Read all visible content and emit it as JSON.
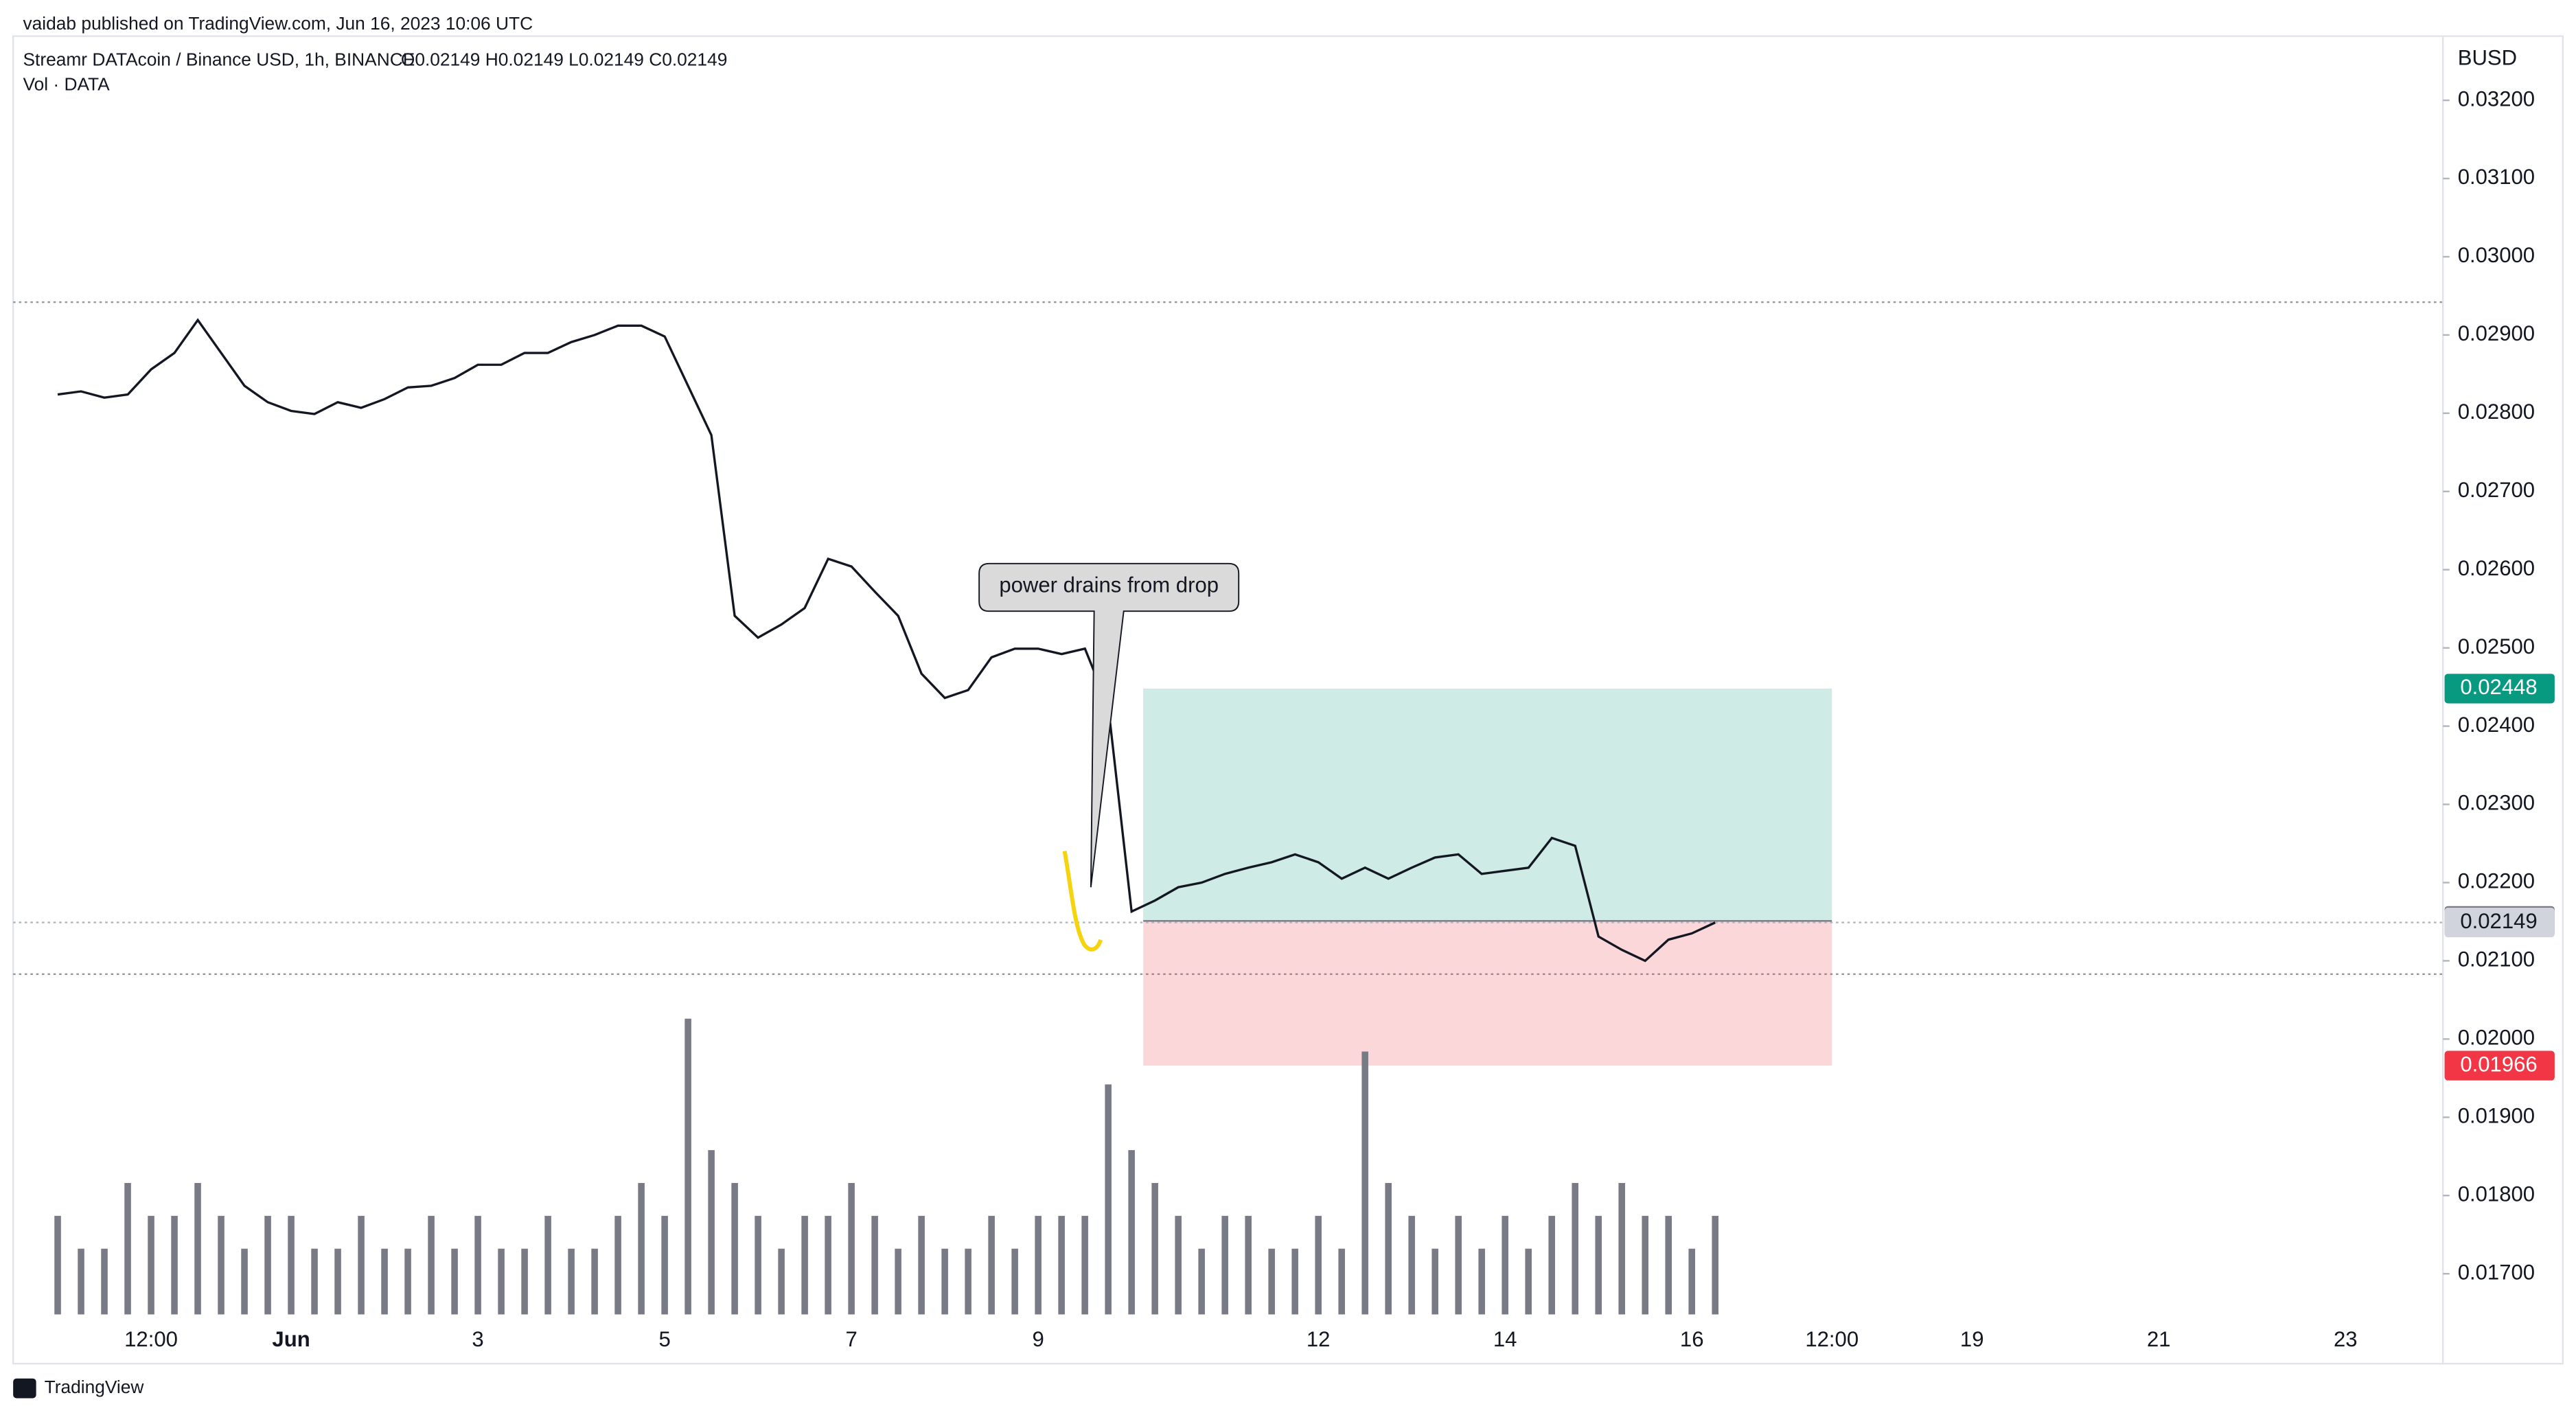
{
  "header": {
    "publisher": "vaidab published on TradingView.com, Jun 16, 2023 10:06 UTC",
    "footer": "TradingView"
  },
  "chart_data": {
    "type": "line",
    "legend_ohlc": "O0.02149  H0.02149  L0.02149  C0.02149",
    "y_unit": "BUSD",
    "annotation": "power drains from drop",
    "categories": [
      null,
      null,
      null,
      null,
      null,
      null,
      "12:00",
      null,
      null,
      null,
      null,
      null,
      "Jun",
      null,
      null,
      null,
      null,
      null,
      null,
      null,
      "3",
      null,
      null,
      null,
      null,
      null,
      null,
      null,
      "5",
      null,
      null,
      null,
      null,
      null,
      null,
      null,
      "7",
      null,
      null,
      null,
      null,
      null,
      null,
      null,
      "9",
      null,
      null,
      null,
      null,
      null,
      null,
      null,
      null,
      null,
      null,
      null,
      "12",
      null,
      null,
      null,
      null,
      null,
      null,
      null,
      "14",
      null,
      null,
      null,
      null,
      null,
      null,
      null,
      "16",
      null,
      null,
      null,
      null,
      null,
      "12:00",
      null,
      null,
      null,
      null,
      null,
      "19",
      null,
      null,
      null,
      null,
      null,
      null,
      null,
      "21",
      null,
      null,
      null,
      null,
      null,
      null,
      null,
      "23"
    ],
    "series": [
      {
        "name": "Streamr DATAcoin / Binance USD, 1h, BINANCE",
        "color": "#131722",
        "values": [
          null,
          null,
          0.02824,
          0.02828,
          0.0282,
          0.02824,
          0.02856,
          0.02877,
          0.02919,
          0.02877,
          0.02835,
          0.02814,
          0.02803,
          0.02799,
          0.02814,
          0.02807,
          0.02818,
          0.02833,
          0.02835,
          0.02845,
          0.02862,
          0.02862,
          0.02877,
          0.02877,
          0.02891,
          0.029,
          0.02912,
          0.02912,
          0.02898,
          0.02835,
          0.02772,
          0.02541,
          0.02513,
          0.0253,
          0.02551,
          0.02614,
          0.02604,
          0.02572,
          0.02541,
          0.02467,
          0.02436,
          0.02446,
          0.02488,
          0.02499,
          0.02499,
          0.02492,
          0.02499,
          0.02425,
          0.02163,
          0.02177,
          0.02194,
          0.022,
          0.02211,
          0.02219,
          0.02226,
          0.02236,
          0.02226,
          0.02205,
          0.02219,
          0.02205,
          0.02219,
          0.02232,
          0.02236,
          0.02211,
          0.02215,
          0.02219,
          0.02257,
          0.02247,
          0.02131,
          0.02114,
          0.021,
          0.02127,
          0.02135,
          0.02149,
          null,
          null,
          null,
          null,
          null,
          null,
          null,
          null,
          null,
          null,
          null,
          null,
          null,
          null,
          null,
          null,
          null,
          null,
          null,
          null,
          null,
          null,
          null,
          null,
          null,
          null,
          null
        ]
      },
      {
        "name": "Vol · DATA",
        "color": "#787b86",
        "values": [
          null,
          null,
          3,
          2,
          2,
          4,
          3,
          3,
          4,
          3,
          2,
          3,
          3,
          2,
          2,
          3,
          2,
          2,
          3,
          2,
          3,
          2,
          2,
          3,
          2,
          2,
          3,
          4,
          3,
          9,
          5,
          4,
          3,
          2,
          3,
          3,
          4,
          3,
          2,
          3,
          2,
          2,
          3,
          2,
          3,
          3,
          3,
          7,
          5,
          4,
          3,
          2,
          3,
          3,
          2,
          2,
          3,
          2,
          8,
          4,
          3,
          2,
          3,
          2,
          3,
          2,
          3,
          4,
          3,
          4,
          3,
          3,
          2,
          3,
          null,
          null,
          null,
          null,
          null,
          null,
          null,
          null,
          null,
          null,
          null,
          null,
          null,
          null,
          null,
          null,
          null,
          null,
          null,
          null,
          null,
          null,
          null,
          null,
          null,
          null,
          null
        ]
      }
    ],
    "ylim": [
      0.01585,
      0.03282
    ],
    "yticks": [
      {
        "value": 0.032,
        "label": "0.03200"
      },
      {
        "value": 0.031,
        "label": "0.03100"
      },
      {
        "value": 0.03,
        "label": "0.03000"
      },
      {
        "value": 0.029,
        "label": "0.02900"
      },
      {
        "value": 0.028,
        "label": "0.02800"
      },
      {
        "value": 0.027,
        "label": "0.02700"
      },
      {
        "value": 0.026,
        "label": "0.02600"
      },
      {
        "value": 0.025,
        "label": "0.02500"
      },
      {
        "value": 0.024,
        "label": "0.02400"
      },
      {
        "value": 0.023,
        "label": "0.02300"
      },
      {
        "value": 0.022,
        "label": "0.02200"
      },
      {
        "value": 0.021,
        "label": "0.02100"
      },
      {
        "value": 0.02,
        "label": "0.02000"
      },
      {
        "value": 0.019,
        "label": "0.01900"
      },
      {
        "value": 0.018,
        "label": "0.01800"
      },
      {
        "value": 0.017,
        "label": "0.01700"
      }
    ],
    "hlines": [
      0.02942,
      0.02083
    ],
    "position": {
      "target": 0.02448,
      "entry": 0.02151,
      "stop": 0.01966,
      "target_color": "#089981",
      "entry_color": "#787b86",
      "stop_color": "#f23645"
    },
    "last_price": 0.02149
  }
}
